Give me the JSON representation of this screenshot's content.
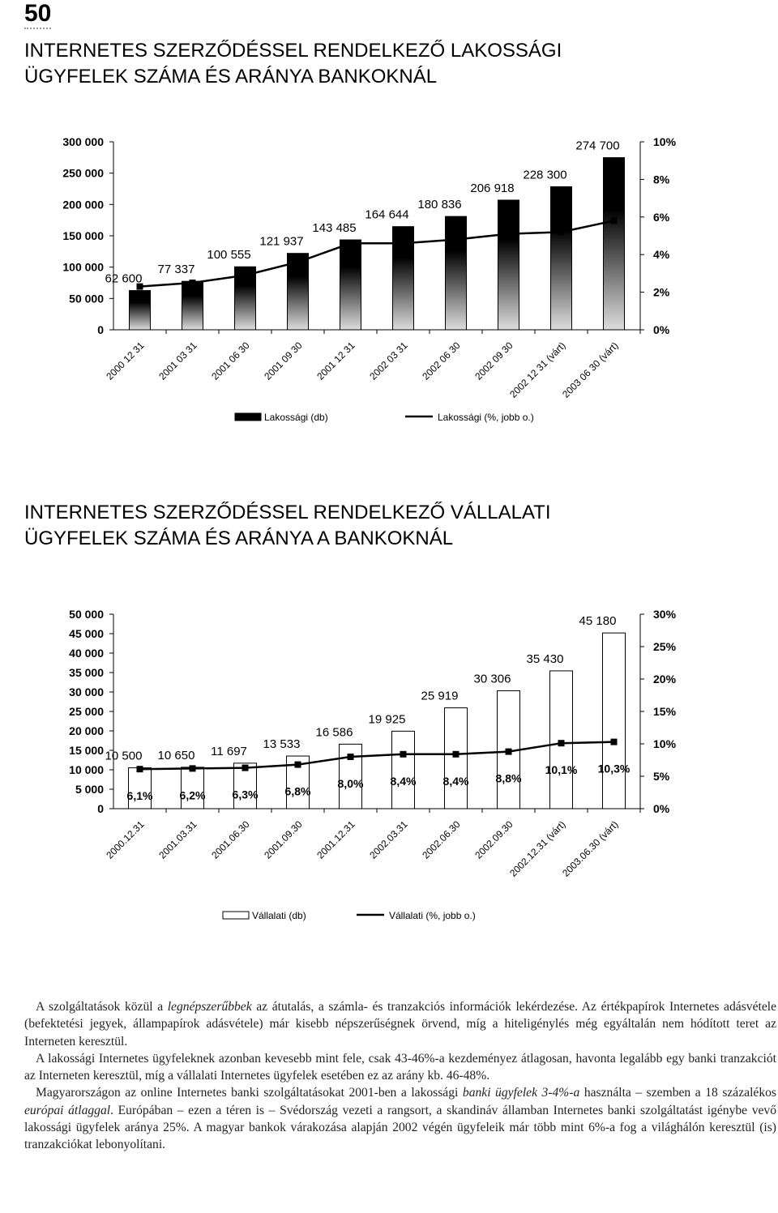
{
  "page_number": "50",
  "chart_data": [
    {
      "type": "bar",
      "title": [
        "INTERNETES SZERZŐDÉSSEL RENDELKEZŐ LAKOSSÁGI",
        "ÜGYFELEK SZÁMA ÉS ARÁNYA BANKOKNÁL"
      ],
      "categories": [
        "2000 12 31",
        "2001 03 31",
        "2001 06 30",
        "2001 09 30",
        "2001 12 31",
        "2002 03 31",
        "2002 06 30",
        "2002 09 30",
        "2002 12 31 (várt)",
        "2003 06 30 (várt)"
      ],
      "series": [
        {
          "name": "Lakossági (db)",
          "type": "bar",
          "color": "#000000",
          "values": [
            62600,
            77337,
            100555,
            121937,
            143485,
            164644,
            180836,
            206918,
            228300,
            274700
          ],
          "value_labels": [
            "62 600",
            "77 337",
            "100 555",
            "121 937",
            "143 485",
            "164 644",
            "180 836",
            "206 918",
            "228 300",
            "274 700"
          ]
        },
        {
          "name": "Lakossági (%, jobb o.)",
          "type": "line",
          "axis": "y2",
          "color": "#000000",
          "values": [
            2.3,
            2.5,
            2.9,
            3.6,
            4.6,
            4.6,
            4.8,
            5.1,
            5.2,
            5.8
          ]
        }
      ],
      "ylim": [
        0,
        300000
      ],
      "yticks": [
        0,
        {
          "value": 50000,
          "label": "50 000"
        },
        {
          "value": 100000,
          "label": "100 000"
        },
        {
          "value": 150000,
          "label": "150 000"
        },
        {
          "value": 200000,
          "label": "200 000"
        },
        {
          "value": 250000,
          "label": "250 000"
        },
        {
          "value": 300000,
          "label": "300 000"
        }
      ],
      "y2lim": [
        0,
        10
      ],
      "y2ticks": [
        {
          "value": 0,
          "label": "0%"
        },
        {
          "value": 2,
          "label": "2%"
        },
        {
          "value": 4,
          "label": "4%"
        },
        {
          "value": 6,
          "label": "6%"
        },
        {
          "value": 8,
          "label": "8%"
        },
        {
          "value": 10,
          "label": "10%"
        }
      ]
    },
    {
      "type": "bar",
      "title": [
        "INTERNETES SZERZŐDÉSSEL RENDELKEZŐ VÁLLALATI",
        "ÜGYFELEK SZÁMA ÉS ARÁNYA A BANKOKNÁL"
      ],
      "categories": [
        "2000.12.31",
        "2001.03.31",
        "2001.06.30",
        "2001.09.30",
        "2001.12.31",
        "2002.03.31",
        "2002.06.30",
        "2002.09.30",
        "2002.12.31 (várt)",
        "2003.06.30 (várt)"
      ],
      "series": [
        {
          "name": "Vállalati (db)",
          "type": "bar",
          "color": "#ffffff",
          "values": [
            10500,
            10650,
            11697,
            13533,
            16586,
            19925,
            25919,
            30306,
            35430,
            45180
          ],
          "value_labels": [
            "10 500",
            "10 650",
            "11 697",
            "13 533",
            "16 586",
            "19 925",
            "25 919",
            "30 306",
            "35 430",
            "45 180"
          ]
        },
        {
          "name": "Vállalati (%, jobb o.)",
          "type": "line",
          "axis": "y2",
          "color": "#000000",
          "values": [
            6.1,
            6.2,
            6.3,
            6.8,
            8.0,
            8.4,
            8.4,
            8.8,
            10.1,
            10.3
          ],
          "value_labels": [
            "6,1%",
            "6,2%",
            "6,3%",
            "6,8%",
            "8,0%",
            "8,4%",
            "8,4%",
            "8,8%",
            "10,1%",
            "10,3%"
          ]
        }
      ],
      "ylim": [
        0,
        50000
      ],
      "yticks": [
        0,
        {
          "value": 5000,
          "label": "5 000"
        },
        {
          "value": 10000,
          "label": "10 000"
        },
        {
          "value": 15000,
          "label": "15 000"
        },
        {
          "value": 20000,
          "label": "20 000"
        },
        {
          "value": 25000,
          "label": "25 000"
        },
        {
          "value": 30000,
          "label": "30 000"
        },
        {
          "value": 35000,
          "label": "35 000"
        },
        {
          "value": 40000,
          "label": "40 000"
        },
        {
          "value": 45000,
          "label": "45 000"
        },
        {
          "value": 50000,
          "label": "50 000"
        }
      ],
      "y2lim": [
        0,
        30
      ],
      "y2ticks": [
        {
          "value": 0,
          "label": "0%"
        },
        {
          "value": 5,
          "label": "5%"
        },
        {
          "value": 10,
          "label": "10%"
        },
        {
          "value": 15,
          "label": "15%"
        },
        {
          "value": 20,
          "label": "20%"
        },
        {
          "value": 25,
          "label": "25%"
        },
        {
          "value": 30,
          "label": "30%"
        }
      ]
    }
  ],
  "paragraphs": [
    [
      {
        "text": "A szolgáltatások közül a ",
        "italic": false
      },
      {
        "text": "legnépszerűbbek",
        "italic": true
      },
      {
        "text": " az átutalás, a számla- és tranzakciós információk lekérdezése. Az értékpapírok Internetes adásvétele (befektetési jegyek, állampapírok adásvétele) már kisebb népszerűségnek örvend, míg a hiteligénylés még egyáltalán nem hódított teret az Interneten keresztül.",
        "italic": false
      }
    ],
    [
      {
        "text": "A lakossági Internetes ügyfeleknek azonban kevesebb mint fele, csak 43-46%-a kezdeményez átlagosan, havonta legalább egy banki tranzakciót az Interneten keresztül, míg a vállalati Internetes ügyfelek esetében ez az arány kb. 46-48%.",
        "italic": false
      }
    ],
    [
      {
        "text": "Magyarországon az online Internetes banki szolgáltatásokat 2001-ben a lakossági ",
        "italic": false
      },
      {
        "text": "banki ügyfelek 3-4%-a",
        "italic": true
      },
      {
        "text": " használta – szemben a 18 százalékos ",
        "italic": false
      },
      {
        "text": "európai átlaggal",
        "italic": true
      },
      {
        "text": ". Európában – ezen a téren is – Svédország vezeti a rangsort, a skandináv államban Internetes banki szolgáltatást igénybe vevő lakossági ügyfelek aránya 25%. A magyar bankok várakozása alapján 2002 végén ügyfeleik már több mint 6%-a fog a világhálón keresztül (is) tranzakciókat lebonyolítani.",
        "italic": false
      }
    ]
  ]
}
